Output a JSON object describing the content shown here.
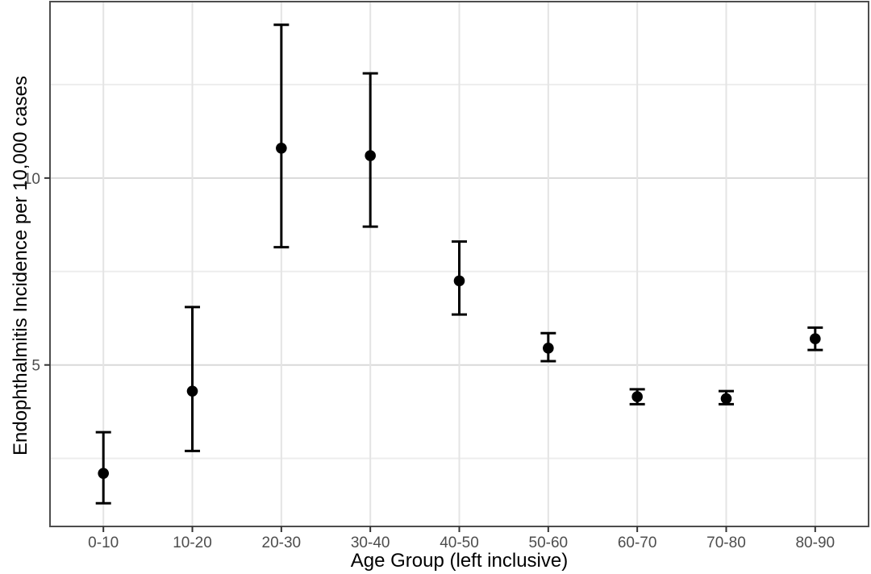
{
  "chart_data": {
    "type": "scatter",
    "subtype": "point-estimates-with-error-bars",
    "title": "",
    "xlabel": "Age Group (left inclusive)",
    "ylabel": "Endophthalmitis Incidence per 10,000 cases",
    "categories": [
      "0-10",
      "10-20",
      "20-30",
      "30-40",
      "40-50",
      "50-60",
      "60-70",
      "70-80",
      "80-90"
    ],
    "series": [
      {
        "name": "Endophthalmitis incidence per 10,000 cases",
        "values": [
          2.1,
          4.3,
          10.8,
          10.6,
          7.25,
          5.45,
          4.15,
          4.1,
          5.7
        ],
        "ci_lower": [
          1.3,
          2.7,
          8.15,
          8.7,
          6.35,
          5.1,
          3.95,
          3.95,
          5.4
        ],
        "ci_upper": [
          3.2,
          6.55,
          14.1,
          12.8,
          8.3,
          5.85,
          4.35,
          4.3,
          6.0
        ]
      }
    ],
    "ylim": [
      0.68,
      14.72
    ],
    "yticks_major": [
      5,
      10
    ],
    "yticks_minor": [
      2.5,
      7.5,
      12.5
    ],
    "grid": "on",
    "legend": "none",
    "style": {
      "point_color": "#000000",
      "errorbar_color": "#000000",
      "grid_major_color": "#D9D9D9",
      "grid_minor_color": "#EDEDED",
      "grid_vertical_color": "#E4E4E4",
      "panel_border_color": "#4D4D4D",
      "tick_color": "#333333",
      "tick_label_color": "#4D4D4D",
      "axis_title_color": "#000000",
      "background": "#FFFFFF"
    }
  }
}
